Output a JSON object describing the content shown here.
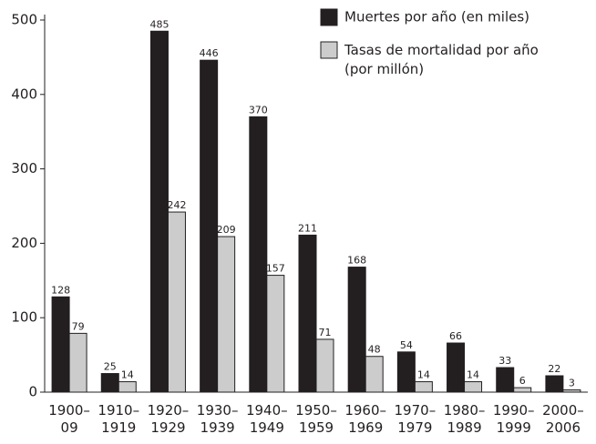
{
  "chart_data": {
    "type": "bar",
    "categories": [
      "1900–09",
      "1910–1919",
      "1920–1929",
      "1930–1939",
      "1940–1949",
      "1950–1959",
      "1960–1969",
      "1970–1979",
      "1980–1989",
      "1990–1999",
      "2000–2006"
    ],
    "series": [
      {
        "name": "Muertes por año (en miles)",
        "color": "#231f20",
        "values": [
          128,
          25,
          485,
          446,
          370,
          211,
          168,
          54,
          66,
          33,
          22
        ]
      },
      {
        "name": "Tasas de mortalidad por año (por millón)",
        "color": "#cccccc",
        "values": [
          79,
          14,
          242,
          209,
          157,
          71,
          48,
          14,
          14,
          6,
          3
        ]
      }
    ],
    "ylim": [
      0,
      500
    ],
    "yticks": [
      0,
      100,
      200,
      300,
      400,
      500
    ],
    "grid": false
  }
}
